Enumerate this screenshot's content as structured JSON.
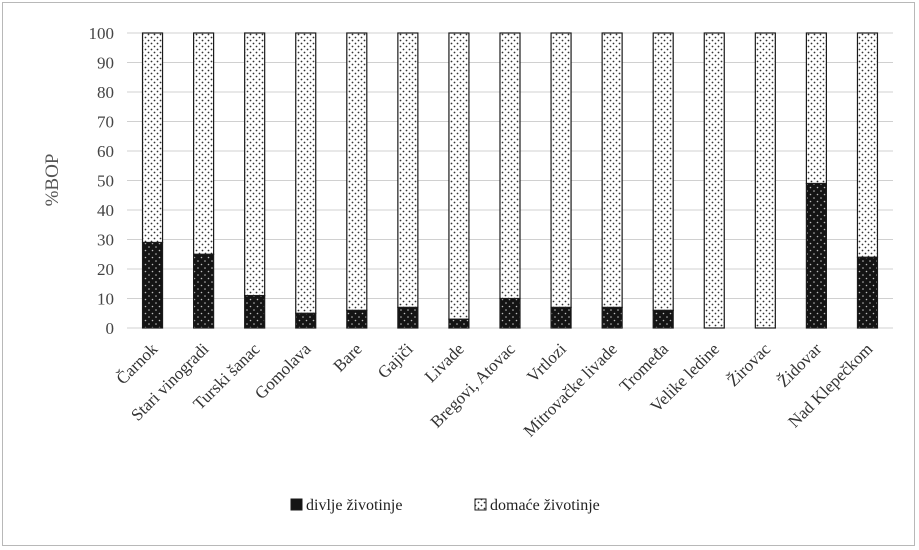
{
  "chart_data": {
    "type": "bar",
    "stacked": true,
    "percent": true,
    "title": "",
    "xlabel": "",
    "ylabel": "%BOP",
    "ylim": [
      0,
      100
    ],
    "yticks": [
      0,
      10,
      20,
      30,
      40,
      50,
      60,
      70,
      80,
      90,
      100
    ],
    "grid": true,
    "legend_position": "bottom",
    "categories": [
      "Čarnok",
      "Stari vinogradi",
      "Turski šanac",
      "Gomolava",
      "Bare",
      "Gajiči",
      "Livade",
      "Bregovi, Atovac",
      "Vrtlozi",
      "Mitrovačke livade",
      "Tromeđa",
      "Velike ledine",
      "Žirovac",
      "Židovar",
      "Nad Klepečkom"
    ],
    "series": [
      {
        "name": "divlje životinje",
        "color": "#141414",
        "values": [
          29,
          25,
          11,
          5,
          6,
          7,
          3,
          10,
          7,
          7,
          6,
          0,
          0,
          49,
          24
        ]
      },
      {
        "name": "domaće životinje",
        "color": "#ffffff",
        "values": [
          71,
          75,
          89,
          95,
          94,
          93,
          97,
          90,
          93,
          93,
          94,
          100,
          100,
          51,
          76
        ]
      }
    ]
  }
}
